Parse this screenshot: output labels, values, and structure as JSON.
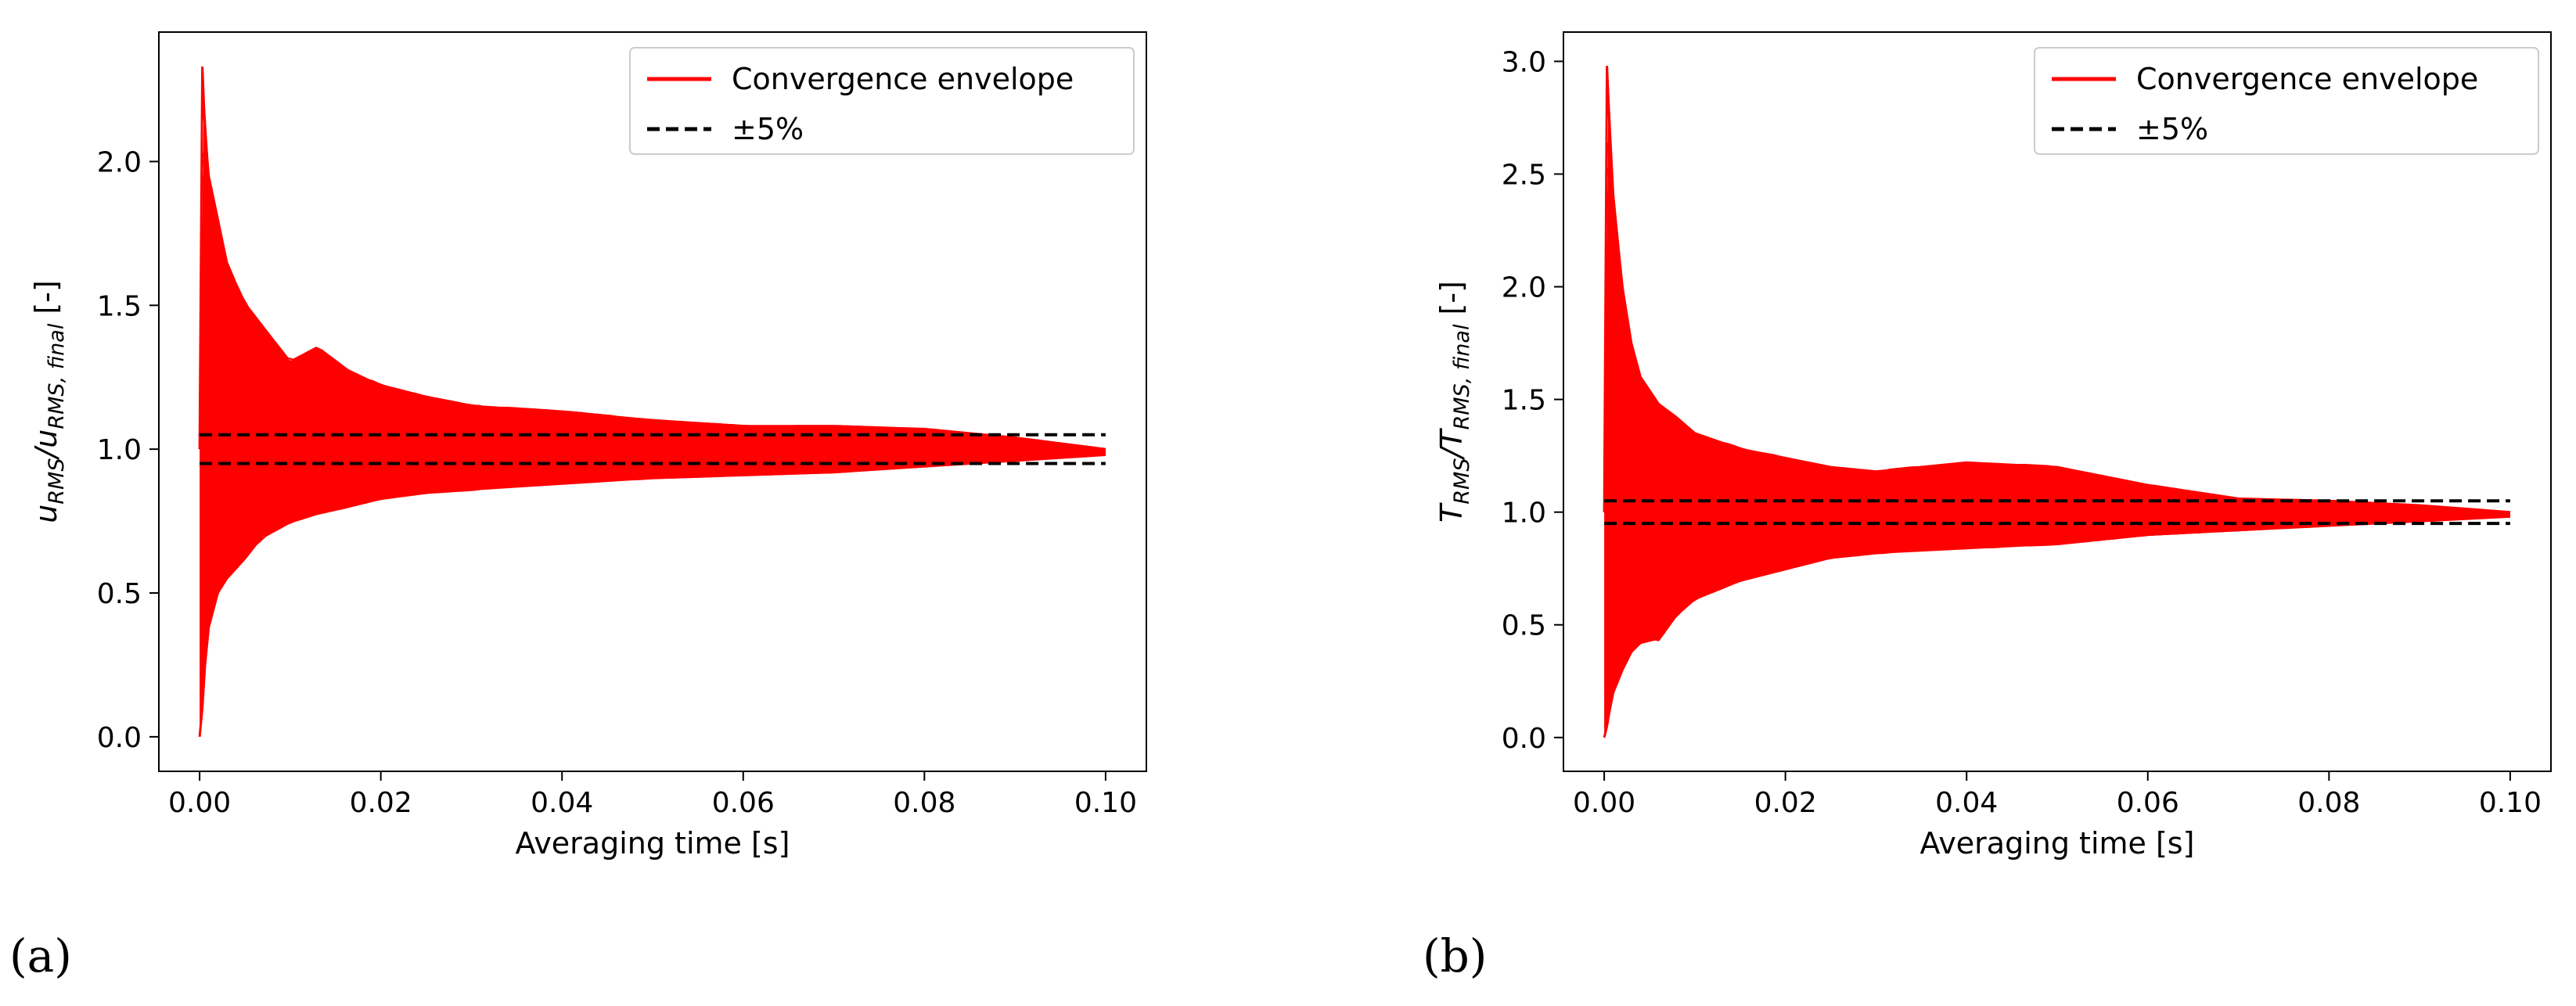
{
  "figure": {
    "panels": [
      "(a)",
      "(b)"
    ]
  },
  "chart_data": [
    {
      "type": "line",
      "panel_label": "(a)",
      "xlabel": "Averaging time [s]",
      "ylabel_main": "u",
      "ylabel_sub1": "RMS",
      "ylabel_sep": "/u",
      "ylabel_sub2": "RMS, final",
      "ylabel_unit": " [-]",
      "xlim": [
        -0.0045,
        0.1045
      ],
      "ylim": [
        -0.12,
        2.45
      ],
      "xticks": [
        0.0,
        0.02,
        0.04,
        0.06,
        0.08,
        0.1
      ],
      "xtick_labels": [
        "0.00",
        "0.02",
        "0.04",
        "0.06",
        "0.08",
        "0.10"
      ],
      "yticks": [
        0.0,
        0.5,
        1.0,
        1.5,
        2.0
      ],
      "ytick_labels": [
        "0.0",
        "0.5",
        "1.0",
        "1.5",
        "2.0"
      ],
      "legend": {
        "placement": "top-right",
        "entries": [
          {
            "label": "Convergence envelope",
            "style": "solid",
            "color": "#ff0000"
          },
          {
            "label": "±5%",
            "style": "dashed",
            "color": "#000000"
          }
        ]
      },
      "series": [
        {
          "name": "Convergence envelope (upper)",
          "x": [
            0.0,
            0.0003,
            0.0006,
            0.001,
            0.002,
            0.003,
            0.005,
            0.007,
            0.01,
            0.013,
            0.016,
            0.02,
            0.025,
            0.03,
            0.04,
            0.05,
            0.06,
            0.07,
            0.08,
            0.09,
            0.1
          ],
          "y": [
            1.0,
            2.33,
            2.1,
            1.95,
            1.8,
            1.65,
            1.5,
            1.42,
            1.3,
            1.35,
            1.28,
            1.22,
            1.18,
            1.15,
            1.13,
            1.1,
            1.08,
            1.08,
            1.07,
            1.04,
            1.0
          ]
        },
        {
          "name": "Convergence envelope (lower)",
          "x": [
            0.0,
            0.0003,
            0.0006,
            0.001,
            0.002,
            0.003,
            0.005,
            0.007,
            0.01,
            0.013,
            0.016,
            0.02,
            0.025,
            0.03,
            0.04,
            0.05,
            0.06,
            0.07,
            0.08,
            0.09,
            0.1
          ],
          "y": [
            0.0,
            0.1,
            0.25,
            0.38,
            0.5,
            0.55,
            0.62,
            0.7,
            0.75,
            0.78,
            0.8,
            0.83,
            0.85,
            0.86,
            0.88,
            0.9,
            0.91,
            0.92,
            0.94,
            0.96,
            0.98
          ]
        },
        {
          "name": "+5%",
          "x": [
            0.0,
            0.1
          ],
          "y": [
            1.05,
            1.05
          ]
        },
        {
          "name": "-5%",
          "x": [
            0.0,
            0.1
          ],
          "y": [
            0.95,
            0.95
          ]
        }
      ]
    },
    {
      "type": "line",
      "panel_label": "(b)",
      "xlabel": "Averaging time [s]",
      "ylabel_main": "T",
      "ylabel_sub1": "RMS",
      "ylabel_sep": "/T",
      "ylabel_sub2": "RMS, final",
      "ylabel_unit": " [-]",
      "xlim": [
        -0.0045,
        0.1045
      ],
      "ylim": [
        -0.15,
        3.13
      ],
      "xticks": [
        0.0,
        0.02,
        0.04,
        0.06,
        0.08,
        0.1
      ],
      "xtick_labels": [
        "0.00",
        "0.02",
        "0.04",
        "0.06",
        "0.08",
        "0.10"
      ],
      "yticks": [
        0.0,
        0.5,
        1.0,
        1.5,
        2.0,
        2.5,
        3.0
      ],
      "ytick_labels": [
        "0.0",
        "0.5",
        "1.0",
        "1.5",
        "2.0",
        "2.5",
        "3.0"
      ],
      "legend": {
        "placement": "top-right",
        "entries": [
          {
            "label": "Convergence envelope",
            "style": "solid",
            "color": "#ff0000"
          },
          {
            "label": "±5%",
            "style": "dashed",
            "color": "#000000"
          }
        ]
      },
      "series": [
        {
          "name": "Convergence envelope (upper)",
          "x": [
            0.0,
            0.0003,
            0.0006,
            0.001,
            0.002,
            0.003,
            0.004,
            0.006,
            0.008,
            0.01,
            0.015,
            0.02,
            0.025,
            0.03,
            0.04,
            0.05,
            0.06,
            0.07,
            0.08,
            0.09,
            0.1
          ],
          "y": [
            1.0,
            2.98,
            2.7,
            2.4,
            2.0,
            1.75,
            1.6,
            1.48,
            1.42,
            1.35,
            1.28,
            1.24,
            1.2,
            1.18,
            1.22,
            1.2,
            1.12,
            1.06,
            1.05,
            1.03,
            1.0
          ]
        },
        {
          "name": "Convergence envelope (lower)",
          "x": [
            0.0,
            0.0003,
            0.0006,
            0.001,
            0.002,
            0.003,
            0.004,
            0.006,
            0.008,
            0.01,
            0.015,
            0.02,
            0.025,
            0.03,
            0.04,
            0.05,
            0.06,
            0.07,
            0.08,
            0.09,
            0.1
          ],
          "y": [
            0.0,
            0.05,
            0.12,
            0.2,
            0.3,
            0.38,
            0.42,
            0.44,
            0.55,
            0.62,
            0.7,
            0.75,
            0.8,
            0.82,
            0.84,
            0.86,
            0.9,
            0.92,
            0.94,
            0.96,
            0.98
          ]
        },
        {
          "name": "+5%",
          "x": [
            0.0,
            0.1
          ],
          "y": [
            1.05,
            1.05
          ]
        },
        {
          "name": "-5%",
          "x": [
            0.0,
            0.1
          ],
          "y": [
            0.95,
            0.95
          ]
        }
      ]
    }
  ]
}
